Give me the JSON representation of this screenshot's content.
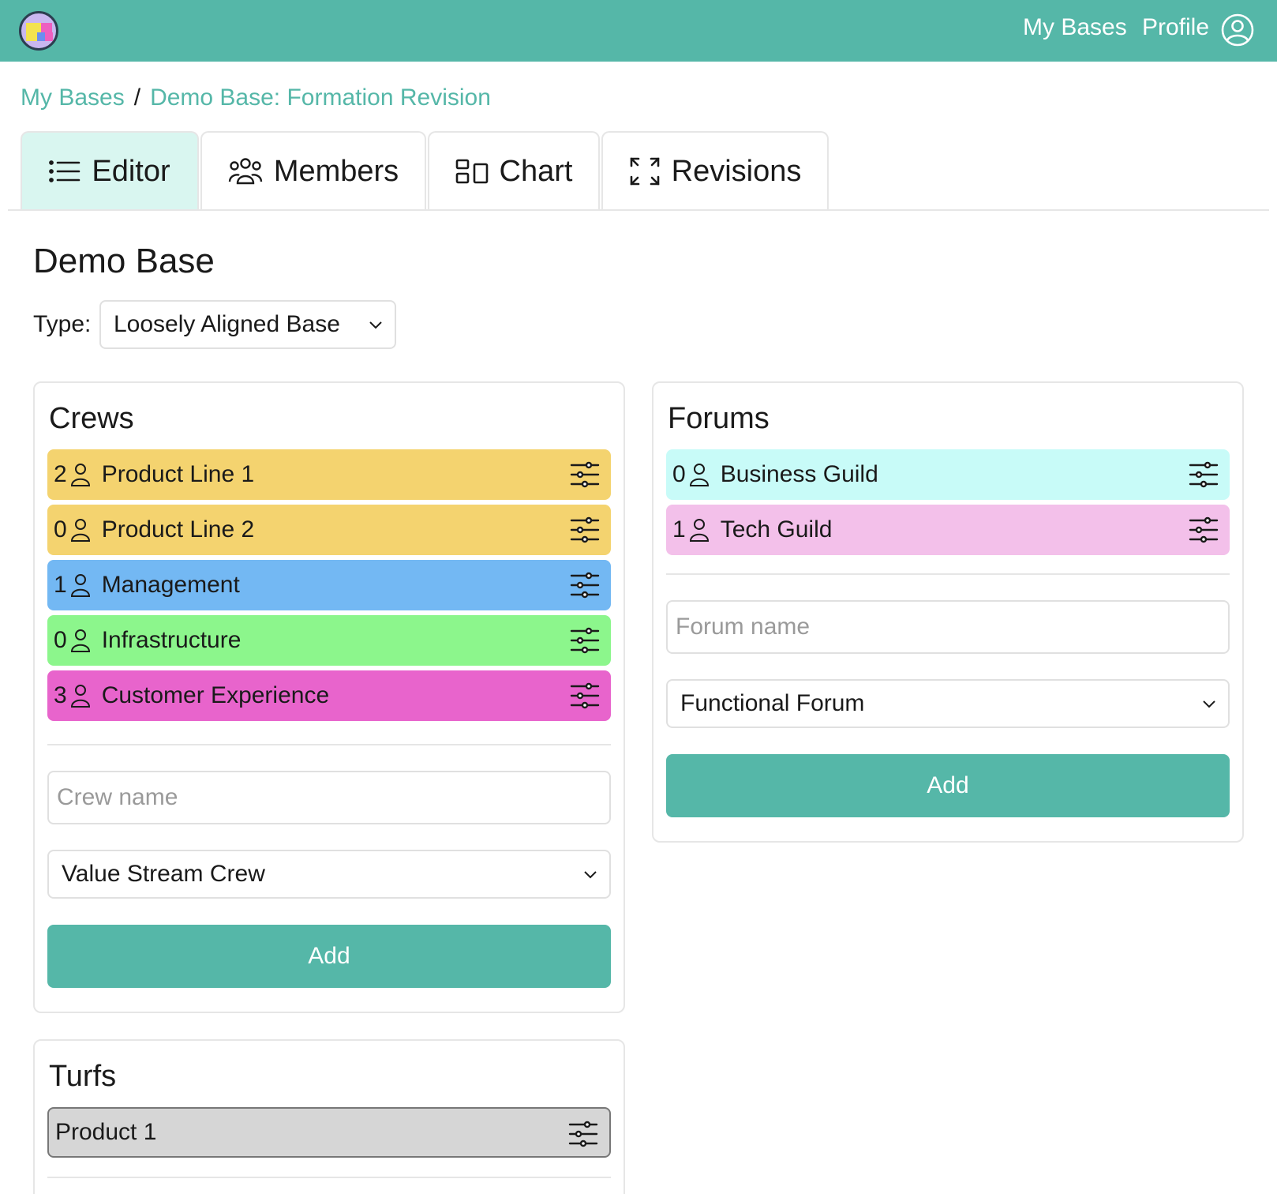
{
  "header": {
    "nav": {
      "my_bases": "My Bases",
      "profile": "Profile"
    }
  },
  "breadcrumb": {
    "root": "My Bases",
    "separator": "/",
    "current": "Demo Base: Formation Revision"
  },
  "tabs": [
    {
      "label": "Editor",
      "icon": "list-icon",
      "active": true
    },
    {
      "label": "Members",
      "icon": "users-icon",
      "active": false
    },
    {
      "label": "Chart",
      "icon": "chart-icon",
      "active": false
    },
    {
      "label": "Revisions",
      "icon": "expand-icon",
      "active": false
    }
  ],
  "base": {
    "title": "Demo Base",
    "type_label": "Type:",
    "type_value": "Loosely Aligned Base"
  },
  "crews": {
    "title": "Crews",
    "items": [
      {
        "count": "2",
        "name": "Product Line 1",
        "color": "#f4d36f"
      },
      {
        "count": "0",
        "name": "Product Line 2",
        "color": "#f4d36f"
      },
      {
        "count": "1",
        "name": "Management",
        "color": "#73b8f3"
      },
      {
        "count": "0",
        "name": "Infrastructure",
        "color": "#8cf68c"
      },
      {
        "count": "3",
        "name": "Customer Experience",
        "color": "#e864cc"
      }
    ],
    "name_placeholder": "Crew name",
    "type_value": "Value Stream Crew",
    "add_label": "Add"
  },
  "forums": {
    "title": "Forums",
    "items": [
      {
        "count": "0",
        "name": "Business Guild",
        "color": "#c8fbf8"
      },
      {
        "count": "1",
        "name": "Tech Guild",
        "color": "#f3c0ea"
      }
    ],
    "name_placeholder": "Forum name",
    "type_value": "Functional Forum",
    "add_label": "Add"
  },
  "turfs": {
    "title": "Turfs",
    "items": [
      {
        "name": "Product 1",
        "color": "#d6d6d6"
      }
    ]
  },
  "colors": {
    "accent": "#55b7a8",
    "active_tab": "#d9f6f0"
  }
}
